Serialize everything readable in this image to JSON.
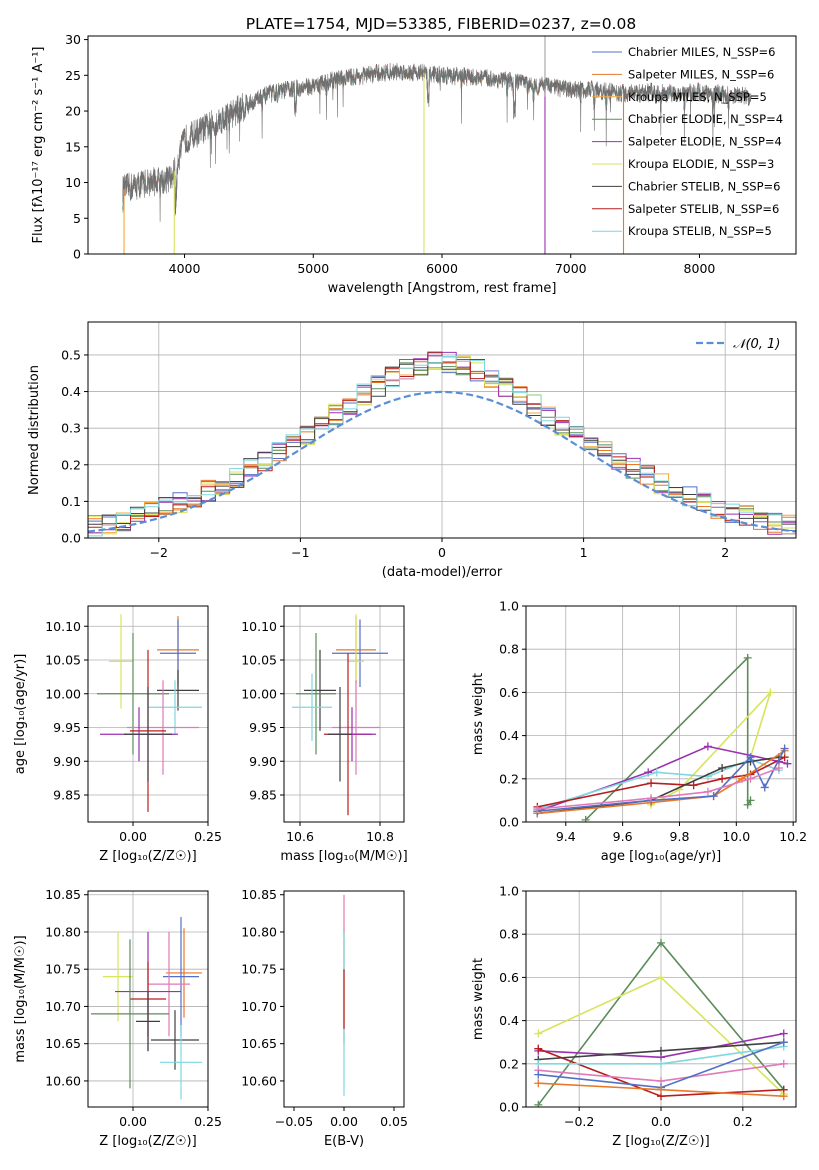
{
  "colors": [
    "#5470c6",
    "#e8782a",
    "#f4a63c",
    "#5b8c5a",
    "#9b30b0",
    "#d8e45c",
    "#404040",
    "#b81e1e",
    "#7fd8e0",
    "#e07ab8"
  ],
  "chart_data": [
    {
      "id": "spectrum",
      "type": "line",
      "title": "PLATE=1754, MJD=53385, FIBERID=0237, z=0.08",
      "xlabel": "wavelength [Angstrom, rest frame]",
      "ylabel": "Flux [fλ10⁻¹⁷ erg cm⁻² s⁻¹ A⁻¹]",
      "xlim": [
        3250,
        8750
      ],
      "ylim": [
        0,
        30.5
      ],
      "xticks": [
        4000,
        5000,
        6000,
        7000,
        8000
      ],
      "yticks": [
        0,
        5,
        10,
        15,
        20,
        25,
        30
      ],
      "continuum": [
        [
          3520,
          9
        ],
        [
          3700,
          10
        ],
        [
          3900,
          10.5
        ],
        [
          4000,
          16
        ],
        [
          4200,
          18
        ],
        [
          4400,
          20
        ],
        [
          4600,
          22
        ],
        [
          4800,
          23
        ],
        [
          5000,
          23.5
        ],
        [
          5200,
          24.5
        ],
        [
          5400,
          25
        ],
        [
          5600,
          25.5
        ],
        [
          5800,
          25.5
        ],
        [
          6000,
          25
        ],
        [
          6200,
          24.8
        ],
        [
          6400,
          24.5
        ],
        [
          6600,
          24
        ],
        [
          6800,
          23.5
        ],
        [
          7000,
          23
        ],
        [
          7200,
          23
        ],
        [
          7400,
          22.5
        ],
        [
          7600,
          22.5
        ],
        [
          7800,
          22.5
        ],
        [
          8000,
          22.5
        ],
        [
          8200,
          22.3
        ],
        [
          8400,
          22
        ]
      ],
      "legend": [
        "Chabrier MILES, N_SSP=6",
        "Salpeter MILES, N_SSP=6",
        "Kroupa MILES, N_SSP=5",
        "Chabrier ELODIE, N_SSP=4",
        "Salpeter ELODIE, N_SSP=4",
        "Kroupa ELODIE, N_SSP=3",
        "Chabrier STELIB, N_SSP=6",
        "Salpeter STELIB, N_SSP=6",
        "Kroupa STELIB, N_SSP=5"
      ],
      "legend_position": "top-right",
      "grid": false
    },
    {
      "id": "residuals",
      "type": "histogram",
      "xlabel": "(data-model)/error",
      "ylabel": "Normed distribution",
      "xlim": [
        -2.5,
        2.5
      ],
      "ylim": [
        0,
        0.59
      ],
      "xticks": [
        -2,
        -1,
        0,
        1,
        2
      ],
      "yticks": [
        0.0,
        0.1,
        0.2,
        0.3,
        0.4,
        0.5
      ],
      "bins": {
        "start": -2.5,
        "width": 0.1,
        "count": 50
      },
      "reference": {
        "name": "𝒩(0, 1)",
        "style": "dashed",
        "color": "#5a8fd6"
      },
      "legend_position": "top-right",
      "grid": true
    },
    {
      "id": "age_vs_Z",
      "type": "errorbar",
      "xlabel": "Z [log₁₀(Z/Z☉)]",
      "ylabel": "age  [log₁₀(age/yr)]",
      "xlim": [
        -0.15,
        0.25
      ],
      "ylim": [
        9.81,
        10.13
      ],
      "xticks": [
        0.0,
        0.25
      ],
      "xtick_labels": [
        "0.00",
        "0.25"
      ],
      "yticks": [
        9.85,
        9.9,
        9.95,
        10.0,
        10.05,
        10.1
      ],
      "points": [
        {
          "x": 0.15,
          "y": 10.065,
          "xerr": 0.07,
          "yerr": 0.05,
          "c": 1
        },
        {
          "x": 0.15,
          "y": 10.06,
          "xerr": 0.06,
          "yerr": 0.05,
          "c": 0
        },
        {
          "x": -0.04,
          "y": 10.048,
          "xerr": 0.04,
          "yerr": 0.07,
          "c": 5
        },
        {
          "x": 0.15,
          "y": 10.005,
          "xerr": 0.07,
          "yerr": 0.03,
          "c": 6
        },
        {
          "x": 0.0,
          "y": 10.0,
          "xerr": 0.12,
          "yerr": 0.09,
          "c": 3
        },
        {
          "x": 0.14,
          "y": 9.98,
          "xerr": 0.09,
          "yerr": 0.04,
          "c": 8
        },
        {
          "x": 0.1,
          "y": 9.95,
          "xerr": 0.12,
          "yerr": 0.07,
          "c": 9
        },
        {
          "x": 0.05,
          "y": 9.945,
          "xerr": 0.06,
          "yerr": 0.12,
          "c": 7
        },
        {
          "x": 0.02,
          "y": 9.94,
          "xerr": 0.13,
          "yerr": 0.04,
          "c": 4
        },
        {
          "x": 0.05,
          "y": 9.94,
          "xerr": 0.08,
          "yerr": 0.07,
          "c": 6
        }
      ],
      "grid": true
    },
    {
      "id": "age_vs_mass",
      "type": "errorbar",
      "xlabel": "mass [log₁₀(M/M☉)]",
      "ylabel": "",
      "xlim": [
        10.56,
        10.86
      ],
      "ylim": [
        9.81,
        10.13
      ],
      "xticks": [
        10.6,
        10.8
      ],
      "yticks": [
        9.85,
        9.9,
        9.95,
        10.0,
        10.05,
        10.1
      ],
      "points": [
        {
          "x": 10.74,
          "y": 10.065,
          "xerr": 0.05,
          "yerr": 0.05,
          "c": 1
        },
        {
          "x": 10.75,
          "y": 10.06,
          "xerr": 0.07,
          "yerr": 0.05,
          "c": 0
        },
        {
          "x": 10.74,
          "y": 10.048,
          "xerr": 0.02,
          "yerr": 0.07,
          "c": 5
        },
        {
          "x": 10.65,
          "y": 10.005,
          "xerr": 0.04,
          "yerr": 0.06,
          "c": 6
        },
        {
          "x": 10.64,
          "y": 10.0,
          "xerr": 0.05,
          "yerr": 0.09,
          "c": 3
        },
        {
          "x": 10.63,
          "y": 9.98,
          "xerr": 0.05,
          "yerr": 0.05,
          "c": 8
        },
        {
          "x": 10.74,
          "y": 9.95,
          "xerr": 0.06,
          "yerr": 0.07,
          "c": 9
        },
        {
          "x": 10.72,
          "y": 9.94,
          "xerr": 0.06,
          "yerr": 0.12,
          "c": 7
        },
        {
          "x": 10.73,
          "y": 9.94,
          "xerr": 0.06,
          "yerr": 0.04,
          "c": 4
        },
        {
          "x": 10.7,
          "y": 9.94,
          "xerr": 0.03,
          "yerr": 0.07,
          "c": 6
        }
      ],
      "grid": true
    },
    {
      "id": "massweight_vs_age",
      "type": "line",
      "xlabel": "age  [log₁₀(age/yr)]",
      "ylabel": "mass weight",
      "xlim": [
        9.26,
        10.21
      ],
      "ylim": [
        0,
        1
      ],
      "xticks": [
        9.4,
        9.6,
        9.8,
        10.0,
        10.2
      ],
      "yticks": [
        0.0,
        0.2,
        0.4,
        0.6,
        0.8,
        1.0
      ],
      "series": [
        {
          "c": 3,
          "x": [
            9.47,
            10.04,
            10.04,
            10.05
          ],
          "y": [
            0.01,
            0.76,
            0.08,
            0.1
          ]
        },
        {
          "c": 5,
          "x": [
            9.7,
            9.8,
            10.12,
            10.05
          ],
          "y": [
            0.08,
            0.15,
            0.6,
            0.3
          ]
        },
        {
          "c": 4,
          "x": [
            9.3,
            9.69,
            9.9,
            10.15,
            10.18
          ],
          "y": [
            0.05,
            0.23,
            0.35,
            0.28,
            0.27
          ]
        },
        {
          "c": 8,
          "x": [
            9.3,
            9.72,
            9.9,
            10.05,
            10.15
          ],
          "y": [
            0.06,
            0.23,
            0.21,
            0.29,
            0.24
          ]
        },
        {
          "c": 7,
          "x": [
            9.3,
            9.7,
            9.85,
            9.95,
            10.05,
            10.17
          ],
          "y": [
            0.07,
            0.18,
            0.17,
            0.2,
            0.22,
            0.3
          ]
        },
        {
          "c": 6,
          "x": [
            9.3,
            9.7,
            9.95,
            10.05,
            10.15
          ],
          "y": [
            0.04,
            0.1,
            0.25,
            0.28,
            0.3
          ]
        },
        {
          "c": 1,
          "x": [
            9.3,
            9.7,
            9.92,
            10.02,
            10.17
          ],
          "y": [
            0.04,
            0.09,
            0.12,
            0.2,
            0.33
          ]
        },
        {
          "c": 0,
          "x": [
            9.3,
            9.7,
            9.92,
            10.05,
            10.1,
            10.17
          ],
          "y": [
            0.05,
            0.1,
            0.12,
            0.3,
            0.16,
            0.34
          ]
        },
        {
          "c": 9,
          "x": [
            9.3,
            9.7,
            9.9,
            10.05,
            10.15
          ],
          "y": [
            0.06,
            0.11,
            0.14,
            0.2,
            0.25
          ]
        }
      ],
      "grid": true
    },
    {
      "id": "mass_vs_Z",
      "type": "errorbar",
      "xlabel": "Z [log₁₀(Z/Z☉)]",
      "ylabel": "mass [log₁₀(M/M☉)]",
      "xlim": [
        -0.15,
        0.25
      ],
      "ylim": [
        10.565,
        10.855
      ],
      "xticks": [
        0.0,
        0.25
      ],
      "xtick_labels": [
        "0.00",
        "0.25"
      ],
      "yticks": [
        10.6,
        10.65,
        10.7,
        10.75,
        10.8,
        10.85
      ],
      "points": [
        {
          "x": -0.05,
          "y": 10.74,
          "xerr": 0.05,
          "yerr": 0.06,
          "c": 5
        },
        {
          "x": 0.17,
          "y": 10.745,
          "xerr": 0.06,
          "yerr": 0.06,
          "c": 1
        },
        {
          "x": 0.16,
          "y": 10.74,
          "xerr": 0.06,
          "yerr": 0.08,
          "c": 0
        },
        {
          "x": 0.12,
          "y": 10.73,
          "xerr": 0.07,
          "yerr": 0.07,
          "c": 9
        },
        {
          "x": 0.05,
          "y": 10.72,
          "xerr": 0.11,
          "yerr": 0.08,
          "c": 4
        },
        {
          "x": 0.05,
          "y": 10.71,
          "xerr": 0.06,
          "yerr": 0.05,
          "c": 7
        },
        {
          "x": -0.01,
          "y": 10.69,
          "xerr": 0.13,
          "yerr": 0.1,
          "c": 3
        },
        {
          "x": 0.14,
          "y": 10.655,
          "xerr": 0.08,
          "yerr": 0.04,
          "c": 6
        },
        {
          "x": 0.16,
          "y": 10.625,
          "xerr": 0.07,
          "yerr": 0.05,
          "c": 8
        },
        {
          "x": 0.05,
          "y": 10.68,
          "xerr": 0.04,
          "yerr": 0.04,
          "c": 6
        }
      ],
      "grid": true
    },
    {
      "id": "mass_vs_EBV",
      "type": "errorbar",
      "xlabel": "E(B-V)",
      "ylabel": "",
      "xlim": [
        -0.06,
        0.06
      ],
      "ylim": [
        10.565,
        10.855
      ],
      "xticks": [
        -0.05,
        0.0,
        0.05
      ],
      "xtick_labels": [
        "−0.05",
        "0.00",
        "0.05"
      ],
      "yticks": [
        10.6,
        10.65,
        10.7,
        10.75,
        10.8,
        10.85
      ],
      "points": [
        {
          "x": 0.0,
          "y": 10.75,
          "xerr": 0,
          "yerr": 0.1,
          "c": 9
        },
        {
          "x": 0.0,
          "y": 10.72,
          "xerr": 0,
          "yerr": 0.08,
          "c": 5
        },
        {
          "x": 0.0,
          "y": 10.69,
          "xerr": 0,
          "yerr": 0.11,
          "c": 8
        },
        {
          "x": 0.0,
          "y": 10.71,
          "xerr": 0,
          "yerr": 0.04,
          "c": 7
        }
      ],
      "grid": false
    },
    {
      "id": "massweight_vs_Z",
      "type": "line",
      "xlabel": "Z [log₁₀(Z/Z☉)]",
      "ylabel": "mass weight",
      "xlim": [
        -0.33,
        0.33
      ],
      "ylim": [
        0,
        1
      ],
      "xticks": [
        -0.2,
        0.0,
        0.2
      ],
      "xtick_labels": [
        "−0.2",
        "0.0",
        "0.2"
      ],
      "yticks": [
        0.0,
        0.2,
        0.4,
        0.6,
        0.8,
        1.0
      ],
      "series": [
        {
          "c": 3,
          "x": [
            -0.3,
            0.0,
            0.3
          ],
          "y": [
            0.01,
            0.76,
            0.08
          ]
        },
        {
          "c": 5,
          "x": [
            -0.3,
            0.0,
            0.3
          ],
          "y": [
            0.34,
            0.6,
            0.06
          ]
        },
        {
          "c": 4,
          "x": [
            -0.3,
            0.0,
            0.3
          ],
          "y": [
            0.26,
            0.23,
            0.34
          ]
        },
        {
          "c": 7,
          "x": [
            -0.3,
            0.0,
            0.3
          ],
          "y": [
            0.27,
            0.05,
            0.08
          ]
        },
        {
          "c": 6,
          "x": [
            -0.3,
            0.0,
            0.3
          ],
          "y": [
            0.22,
            0.26,
            0.3
          ]
        },
        {
          "c": 8,
          "x": [
            -0.3,
            0.0,
            0.3
          ],
          "y": [
            0.2,
            0.2,
            0.28
          ]
        },
        {
          "c": 9,
          "x": [
            -0.3,
            0.0,
            0.3
          ],
          "y": [
            0.17,
            0.12,
            0.2
          ]
        },
        {
          "c": 0,
          "x": [
            -0.3,
            0.0,
            0.3
          ],
          "y": [
            0.15,
            0.09,
            0.3
          ]
        },
        {
          "c": 1,
          "x": [
            -0.3,
            0.0,
            0.3
          ],
          "y": [
            0.11,
            0.08,
            0.05
          ]
        }
      ],
      "grid": true
    }
  ]
}
